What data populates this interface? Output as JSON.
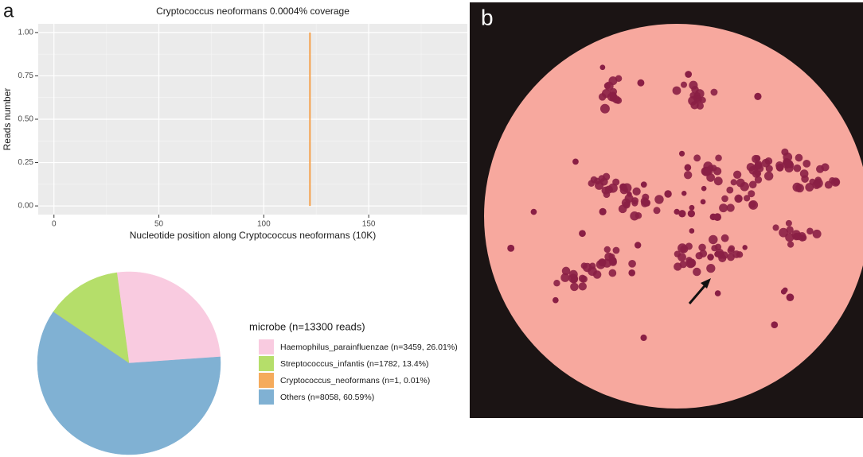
{
  "panels": [
    "a",
    "b"
  ],
  "chart_data": [
    {
      "type": "bar",
      "title": "Cryptococcus neoformans 0.0004% coverage",
      "x_label": "Nucleotide position along Cryptococcus neoformans (10K)",
      "y_label": "Reads number",
      "x": [
        122
      ],
      "values": [
        1
      ],
      "color": "#f5a04a",
      "xlim": [
        -7.5,
        197
      ],
      "ylim": [
        -0.05,
        1.05
      ],
      "xticks": [
        0,
        50,
        100,
        150
      ],
      "yticks": [
        {
          "value": 0,
          "label": "0.00"
        },
        {
          "value": 0.25,
          "label": "0.25"
        },
        {
          "value": 0.5,
          "label": "0.50"
        },
        {
          "value": 0.75,
          "label": "0.75"
        },
        {
          "value": 1,
          "label": "1.00"
        }
      ],
      "minor_xticks": [
        25,
        75,
        125,
        175
      ],
      "minor_yticks": [
        0.125,
        0.375,
        0.625,
        0.875
      ],
      "grid": true
    },
    {
      "type": "pie",
      "legend_title": "microbe (n=13300 reads)",
      "categories": [
        "Haemophilus_parainfluenzae (n=3459, 26.01%)",
        "Streptococcus_infantis (n=1782, 13.4%)",
        "Cryptococcus_neoformans (n=1, 0.01%)",
        "Others (n=8058, 60.59%)"
      ],
      "values": [
        26.01,
        13.4,
        0.01,
        60.59
      ],
      "colors": [
        "#f9cbe0",
        "#b5de6a",
        "#f5ab5c",
        "#80b1d3"
      ]
    }
  ]
}
